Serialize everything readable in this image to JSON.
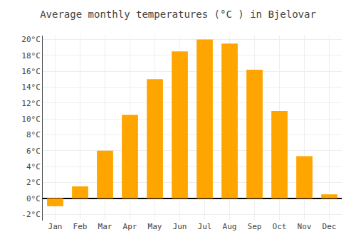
{
  "chart_data": {
    "type": "bar",
    "title": "Average monthly temperatures (°C ) in Bjelovar",
    "categories": [
      "Jan",
      "Feb",
      "Mar",
      "Apr",
      "May",
      "Jun",
      "Jul",
      "Aug",
      "Sep",
      "Oct",
      "Nov",
      "Dec"
    ],
    "values": [
      -1.0,
      1.5,
      6.0,
      10.5,
      15.0,
      18.5,
      20.0,
      19.5,
      16.2,
      11.0,
      5.3,
      0.5
    ],
    "color": "#FFA500",
    "ylim": [
      -2.8,
      20.5
    ],
    "yticks": [
      {
        "value": -2,
        "label": "-2°C"
      },
      {
        "value": 0,
        "label": "0°C"
      },
      {
        "value": 2,
        "label": "2°C"
      },
      {
        "value": 4,
        "label": "4°C"
      },
      {
        "value": 6,
        "label": "6°C"
      },
      {
        "value": 8,
        "label": "8°C"
      },
      {
        "value": 10,
        "label": "10°C"
      },
      {
        "value": 12,
        "label": "12°C"
      },
      {
        "value": 14,
        "label": "14°C"
      },
      {
        "value": 16,
        "label": "16°C"
      },
      {
        "value": 18,
        "label": "18°C"
      },
      {
        "value": 20,
        "label": "20°C"
      }
    ],
    "grid": true
  }
}
